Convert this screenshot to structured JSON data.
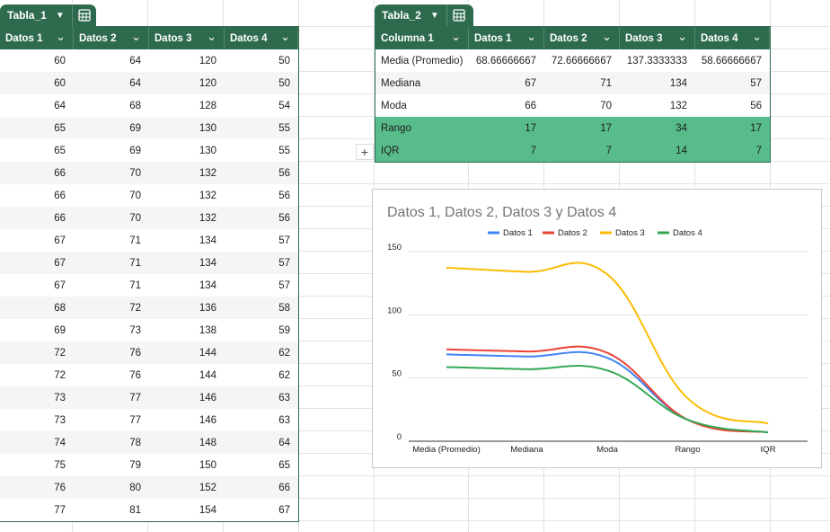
{
  "colors": {
    "header_green": "#2e6b4e",
    "highlight_green": "#57bb8a"
  },
  "tabla1": {
    "name": "Tabla_1",
    "headers": [
      "Datos 1",
      "Datos 2",
      "Datos 3",
      "Datos 4"
    ],
    "rows": [
      [
        60,
        64,
        120,
        50
      ],
      [
        60,
        64,
        120,
        50
      ],
      [
        64,
        68,
        128,
        54
      ],
      [
        65,
        69,
        130,
        55
      ],
      [
        65,
        69,
        130,
        55
      ],
      [
        66,
        70,
        132,
        56
      ],
      [
        66,
        70,
        132,
        56
      ],
      [
        66,
        70,
        132,
        56
      ],
      [
        67,
        71,
        134,
        57
      ],
      [
        67,
        71,
        134,
        57
      ],
      [
        67,
        71,
        134,
        57
      ],
      [
        68,
        72,
        136,
        58
      ],
      [
        69,
        73,
        138,
        59
      ],
      [
        72,
        76,
        144,
        62
      ],
      [
        72,
        76,
        144,
        62
      ],
      [
        73,
        77,
        146,
        63
      ],
      [
        73,
        77,
        146,
        63
      ],
      [
        74,
        78,
        148,
        64
      ],
      [
        75,
        79,
        150,
        65
      ],
      [
        76,
        80,
        152,
        66
      ],
      [
        77,
        81,
        154,
        67
      ]
    ]
  },
  "tabla2": {
    "name": "Tabla_2",
    "headers": [
      "Columna 1",
      "Datos 1",
      "Datos 2",
      "Datos 3",
      "Datos 4"
    ],
    "rows": [
      [
        "Media (Promedio)",
        "68.66666667",
        "72.66666667",
        "137.3333333",
        "58.66666667"
      ],
      [
        "Mediana",
        "67",
        "71",
        "134",
        "57"
      ],
      [
        "Moda",
        "66",
        "70",
        "132",
        "56"
      ],
      [
        "Rango",
        "17",
        "17",
        "34",
        "17"
      ],
      [
        "IQR",
        "7",
        "7",
        "14",
        "7"
      ]
    ],
    "highlighted_rows": [
      3,
      4
    ]
  },
  "add_row_label": "+",
  "chart_data": {
    "type": "line",
    "title": "Datos 1, Datos 2, Datos 3 y Datos 4",
    "categories": [
      "Media (Promedio)",
      "Mediana",
      "Moda",
      "Rango",
      "IQR"
    ],
    "series": [
      {
        "name": "Datos 1",
        "color": "#4285f4",
        "values": [
          68.67,
          67,
          66,
          17,
          7
        ]
      },
      {
        "name": "Datos 2",
        "color": "#ea4335",
        "values": [
          72.67,
          71,
          70,
          17,
          7
        ]
      },
      {
        "name": "Datos 3",
        "color": "#fbbc04",
        "values": [
          137.33,
          134,
          132,
          34,
          14
        ]
      },
      {
        "name": "Datos 4",
        "color": "#34a853",
        "values": [
          58.67,
          57,
          56,
          17,
          7
        ]
      }
    ],
    "ylim": [
      0,
      150
    ],
    "yticks": [
      0,
      50,
      100,
      150
    ],
    "smooth": true,
    "grid": true,
    "legend": "top"
  }
}
